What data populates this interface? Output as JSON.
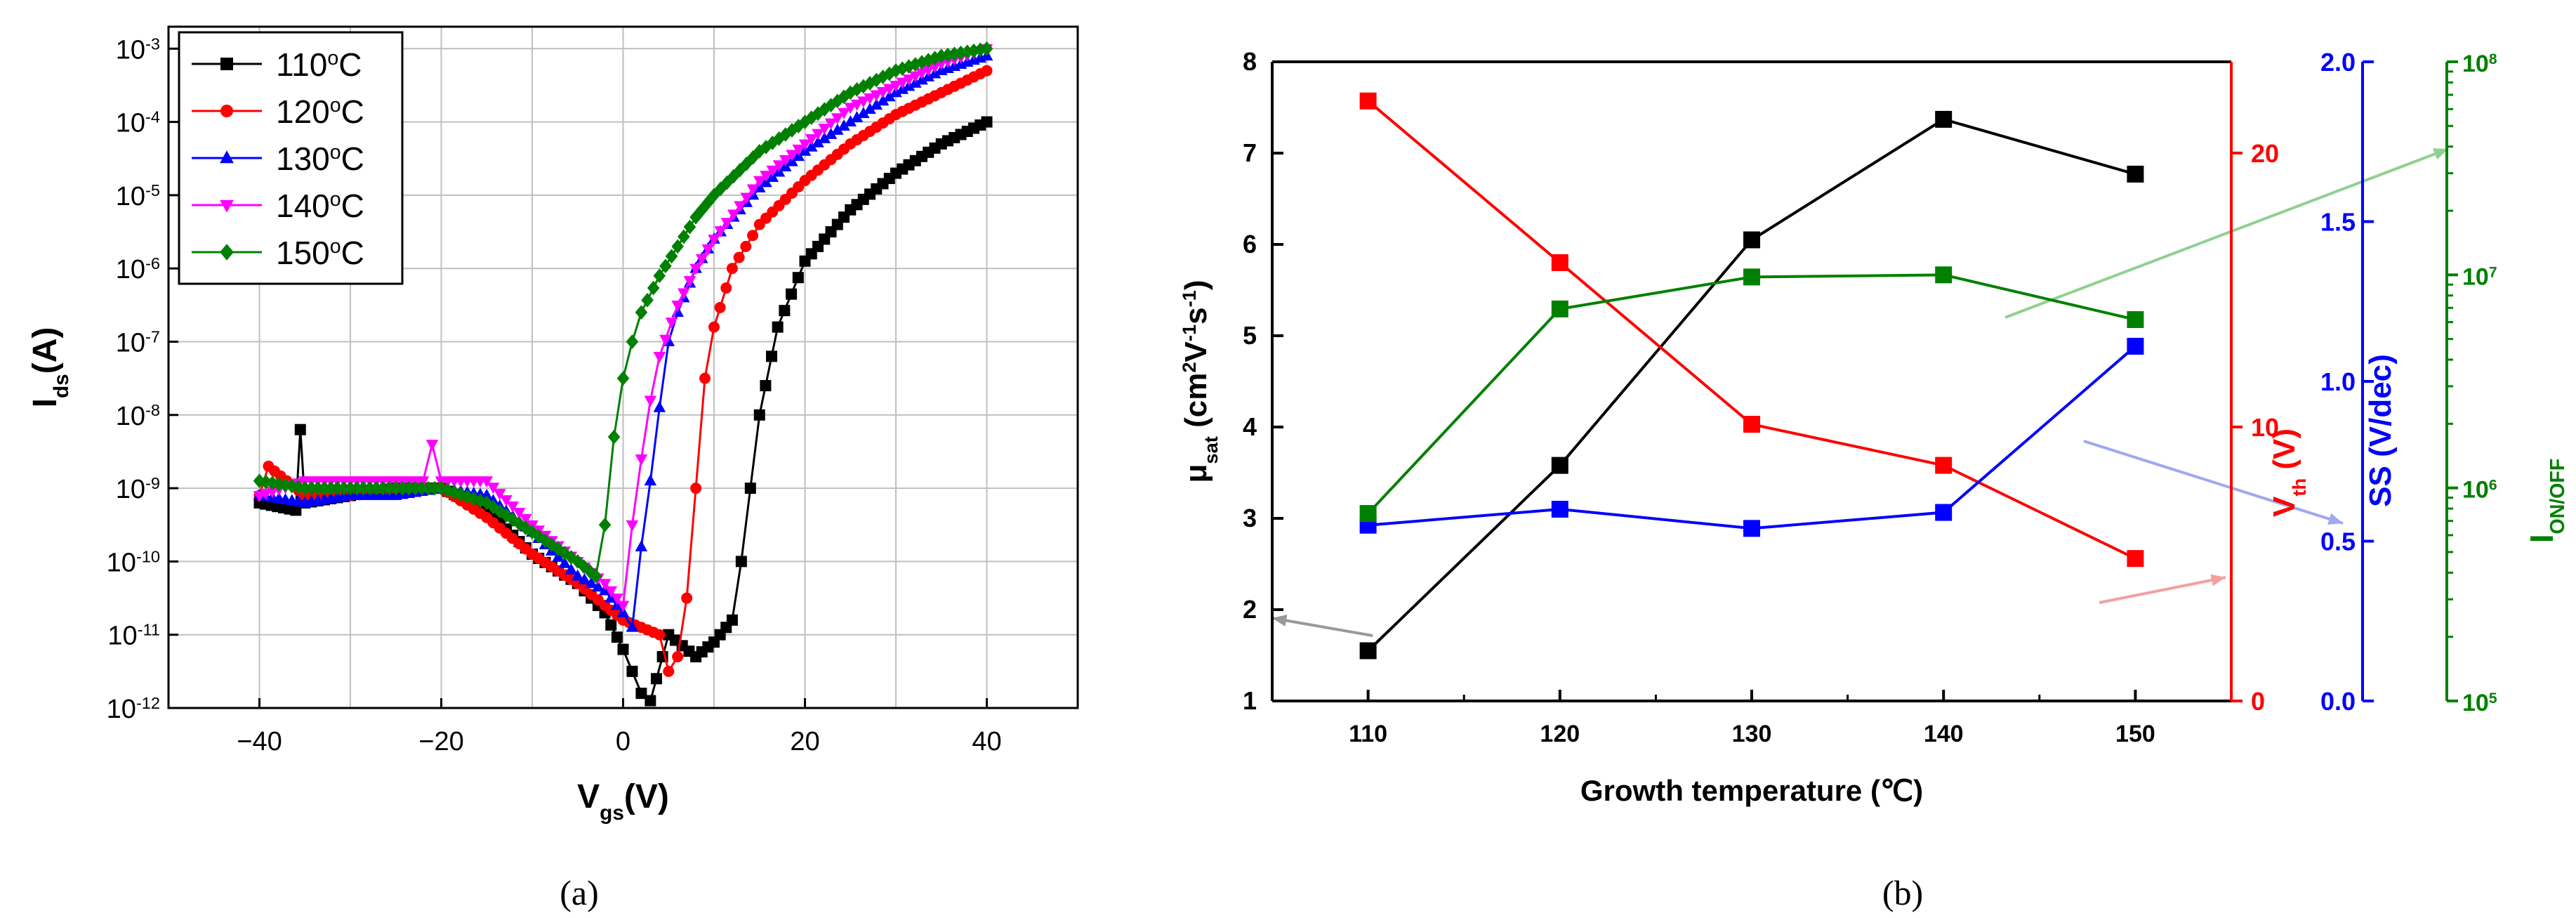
{
  "figure": {
    "label_a": "(a)",
    "label_b": "(b)"
  },
  "colors": {
    "black": "#000000",
    "red": "#ff0000",
    "blue": "#0000ff",
    "magenta": "#ff00ff",
    "green": "#008000",
    "grid": "#bfbfbf"
  },
  "chart_data": [
    {
      "type": "line",
      "panel": "a",
      "title": "",
      "xlabel_main": "V",
      "xlabel_sub": "gs",
      "xlabel_unit": "(V)",
      "ylabel_main": "I",
      "ylabel_sub": "ds",
      "ylabel_unit": "(A)",
      "xlim": [
        -50,
        50
      ],
      "ylim_log10": [
        -12,
        -2.7
      ],
      "yscale": "log",
      "xticks": [
        "-40",
        "-20",
        "0",
        "20",
        "40"
      ],
      "ytick_base": "10",
      "ytick_exponents": [
        "-12",
        "-11",
        "-10",
        "-9",
        "-8",
        "-7",
        "-6",
        "-5",
        "-4",
        "-3"
      ],
      "grid": true,
      "legend_position": "top-left",
      "legend_unit_prefix": "o",
      "legend_unit_suffix": "C",
      "series": [
        {
          "name": "110",
          "color": "#000000",
          "marker": "square",
          "x": [
            -40,
            -36,
            -35.5,
            -35,
            -30,
            -25,
            -20,
            -15,
            -10,
            -5,
            -2,
            0,
            1,
            2,
            3,
            5,
            8,
            10,
            12,
            13,
            14,
            15,
            17,
            20,
            25,
            30,
            35,
            40
          ],
          "log10y": [
            -9.2,
            -9.3,
            -8.2,
            -9.2,
            -9.1,
            -9.0,
            -9.0,
            -9.3,
            -9.9,
            -10.3,
            -10.7,
            -11.2,
            -11.5,
            -11.8,
            -11.9,
            -11.0,
            -11.3,
            -11.1,
            -10.8,
            -10.0,
            -9.0,
            -8.0,
            -6.8,
            -5.9,
            -5.2,
            -4.7,
            -4.3,
            -4.0
          ]
        },
        {
          "name": "120",
          "color": "#ff0000",
          "marker": "circle",
          "x": [
            -40,
            -39,
            -35,
            -30,
            -25,
            -20,
            -15,
            -10,
            -5,
            -2,
            0,
            2,
            4,
            5,
            6,
            7,
            8,
            9,
            10,
            12,
            15,
            20,
            25,
            30,
            35,
            40
          ],
          "log10y": [
            -9.1,
            -8.7,
            -9.1,
            -9.1,
            -9.0,
            -9.0,
            -9.4,
            -9.9,
            -10.3,
            -10.6,
            -10.8,
            -10.9,
            -11.0,
            -11.5,
            -11.3,
            -10.5,
            -9.0,
            -7.5,
            -6.8,
            -6.0,
            -5.4,
            -4.8,
            -4.3,
            -3.9,
            -3.6,
            -3.3
          ]
        },
        {
          "name": "130",
          "color": "#0000ff",
          "marker": "triangle",
          "x": [
            -40,
            -35,
            -30,
            -25,
            -20,
            -15,
            -10,
            -5,
            -2,
            0,
            1,
            2,
            3,
            4,
            5,
            6,
            8,
            10,
            15,
            20,
            25,
            30,
            35,
            40
          ],
          "log10y": [
            -9.1,
            -9.2,
            -9.1,
            -9.1,
            -9.0,
            -9.1,
            -9.6,
            -10.2,
            -10.4,
            -10.7,
            -10.9,
            -9.8,
            -8.9,
            -7.9,
            -7.0,
            -6.6,
            -6.0,
            -5.6,
            -4.9,
            -4.4,
            -4.0,
            -3.6,
            -3.3,
            -3.1
          ]
        },
        {
          "name": "140",
          "color": "#ff00ff",
          "marker": "triangle-down",
          "x": [
            -40,
            -35,
            -30,
            -25,
            -22,
            -21,
            -20,
            -15,
            -10,
            -5,
            -2,
            0,
            1,
            2,
            3,
            4,
            6,
            8,
            10,
            15,
            20,
            25,
            30,
            35,
            40
          ],
          "log10y": [
            -9.1,
            -8.9,
            -8.9,
            -8.9,
            -8.9,
            -8.4,
            -8.9,
            -8.9,
            -9.5,
            -10.0,
            -10.3,
            -10.6,
            -9.5,
            -8.6,
            -7.8,
            -7.2,
            -6.5,
            -6.0,
            -5.6,
            -4.8,
            -4.3,
            -3.8,
            -3.5,
            -3.2,
            -3.0
          ]
        },
        {
          "name": "150",
          "color": "#008000",
          "marker": "diamond",
          "x": [
            -40,
            -35,
            -30,
            -25,
            -20,
            -15,
            -10,
            -5,
            -3,
            -2,
            -1,
            0,
            1,
            2,
            4,
            6,
            8,
            10,
            15,
            20,
            25,
            30,
            35,
            40
          ],
          "log10y": [
            -8.9,
            -9.0,
            -9.0,
            -9.0,
            -9.0,
            -9.2,
            -9.6,
            -10.0,
            -10.2,
            -9.5,
            -8.3,
            -7.5,
            -7.0,
            -6.6,
            -6.1,
            -5.7,
            -5.3,
            -5.0,
            -4.4,
            -4.0,
            -3.6,
            -3.3,
            -3.1,
            -3.0
          ]
        }
      ]
    },
    {
      "type": "line",
      "panel": "b",
      "title": "",
      "xlabel": "Growth temperature (℃)",
      "categories_x": [
        110,
        120,
        130,
        140,
        150
      ],
      "xlim": [
        105,
        155
      ],
      "xticks": [
        "110",
        "120",
        "130",
        "140",
        "150"
      ],
      "grid": false,
      "axes": {
        "mu": {
          "label_main": "μ",
          "label_sub": "sat",
          "label_unit_a": " (cm",
          "label_sup1": "2",
          "label_unit_b": "V",
          "label_sup2": "-1",
          "label_unit_c": "s",
          "label_sup3": "-1",
          "label_unit_d": ")",
          "ylim": [
            1,
            8
          ],
          "ticks": [
            "1",
            "2",
            "3",
            "4",
            "5",
            "6",
            "7",
            "8"
          ],
          "color": "#000000"
        },
        "vth": {
          "label_main": "V",
          "label_sub": "th",
          "label_unit": " (V)",
          "ylim": [
            0,
            23.33
          ],
          "ticks": [
            "0",
            "10",
            "20"
          ],
          "color": "#ff0000"
        },
        "ss": {
          "label": "SS (V/dec)",
          "ylim": [
            0,
            2
          ],
          "ticks": [
            "0.0",
            "0.5",
            "1.0",
            "1.5",
            "2.0"
          ],
          "color": "#0000ff"
        },
        "onoff": {
          "label_main": "I",
          "label_sub": "ON/OFF",
          "ylim_log10": [
            5,
            8
          ],
          "tick_base": "10",
          "tick_exponents": [
            "5",
            "6",
            "7",
            "8"
          ],
          "color": "#008000"
        }
      },
      "series": [
        {
          "name": "μsat",
          "axis": "mu",
          "color": "#000000",
          "x": [
            110,
            120,
            130,
            140,
            150
          ],
          "values": [
            1.55,
            3.58,
            6.05,
            7.37,
            6.77
          ]
        },
        {
          "name": "Vth",
          "axis": "vth",
          "color": "#ff0000",
          "x": [
            110,
            120,
            130,
            140,
            150
          ],
          "values": [
            21.9,
            16.0,
            10.1,
            8.6,
            5.2
          ]
        },
        {
          "name": "SS",
          "axis": "ss",
          "color": "#0000ff",
          "x": [
            110,
            120,
            130,
            140,
            150
          ],
          "values": [
            0.55,
            0.6,
            0.54,
            0.59,
            1.11
          ]
        },
        {
          "name": "ION/OFF",
          "axis": "onoff",
          "color": "#008000",
          "log10values": [
            5.88,
            6.84,
            6.99,
            7.0,
            6.79
          ],
          "x": [
            110,
            120,
            130,
            140,
            150
          ]
        }
      ],
      "annotations": [
        {
          "text": "arrow to μsat axis",
          "color": "#999999"
        },
        {
          "text": "arrow to Vth axis",
          "color": "#f4a0a0"
        },
        {
          "text": "arrow to SS axis",
          "color": "#9fa8f0"
        },
        {
          "text": "arrow to ION/OFF axis",
          "color": "#90d090"
        }
      ]
    }
  ]
}
